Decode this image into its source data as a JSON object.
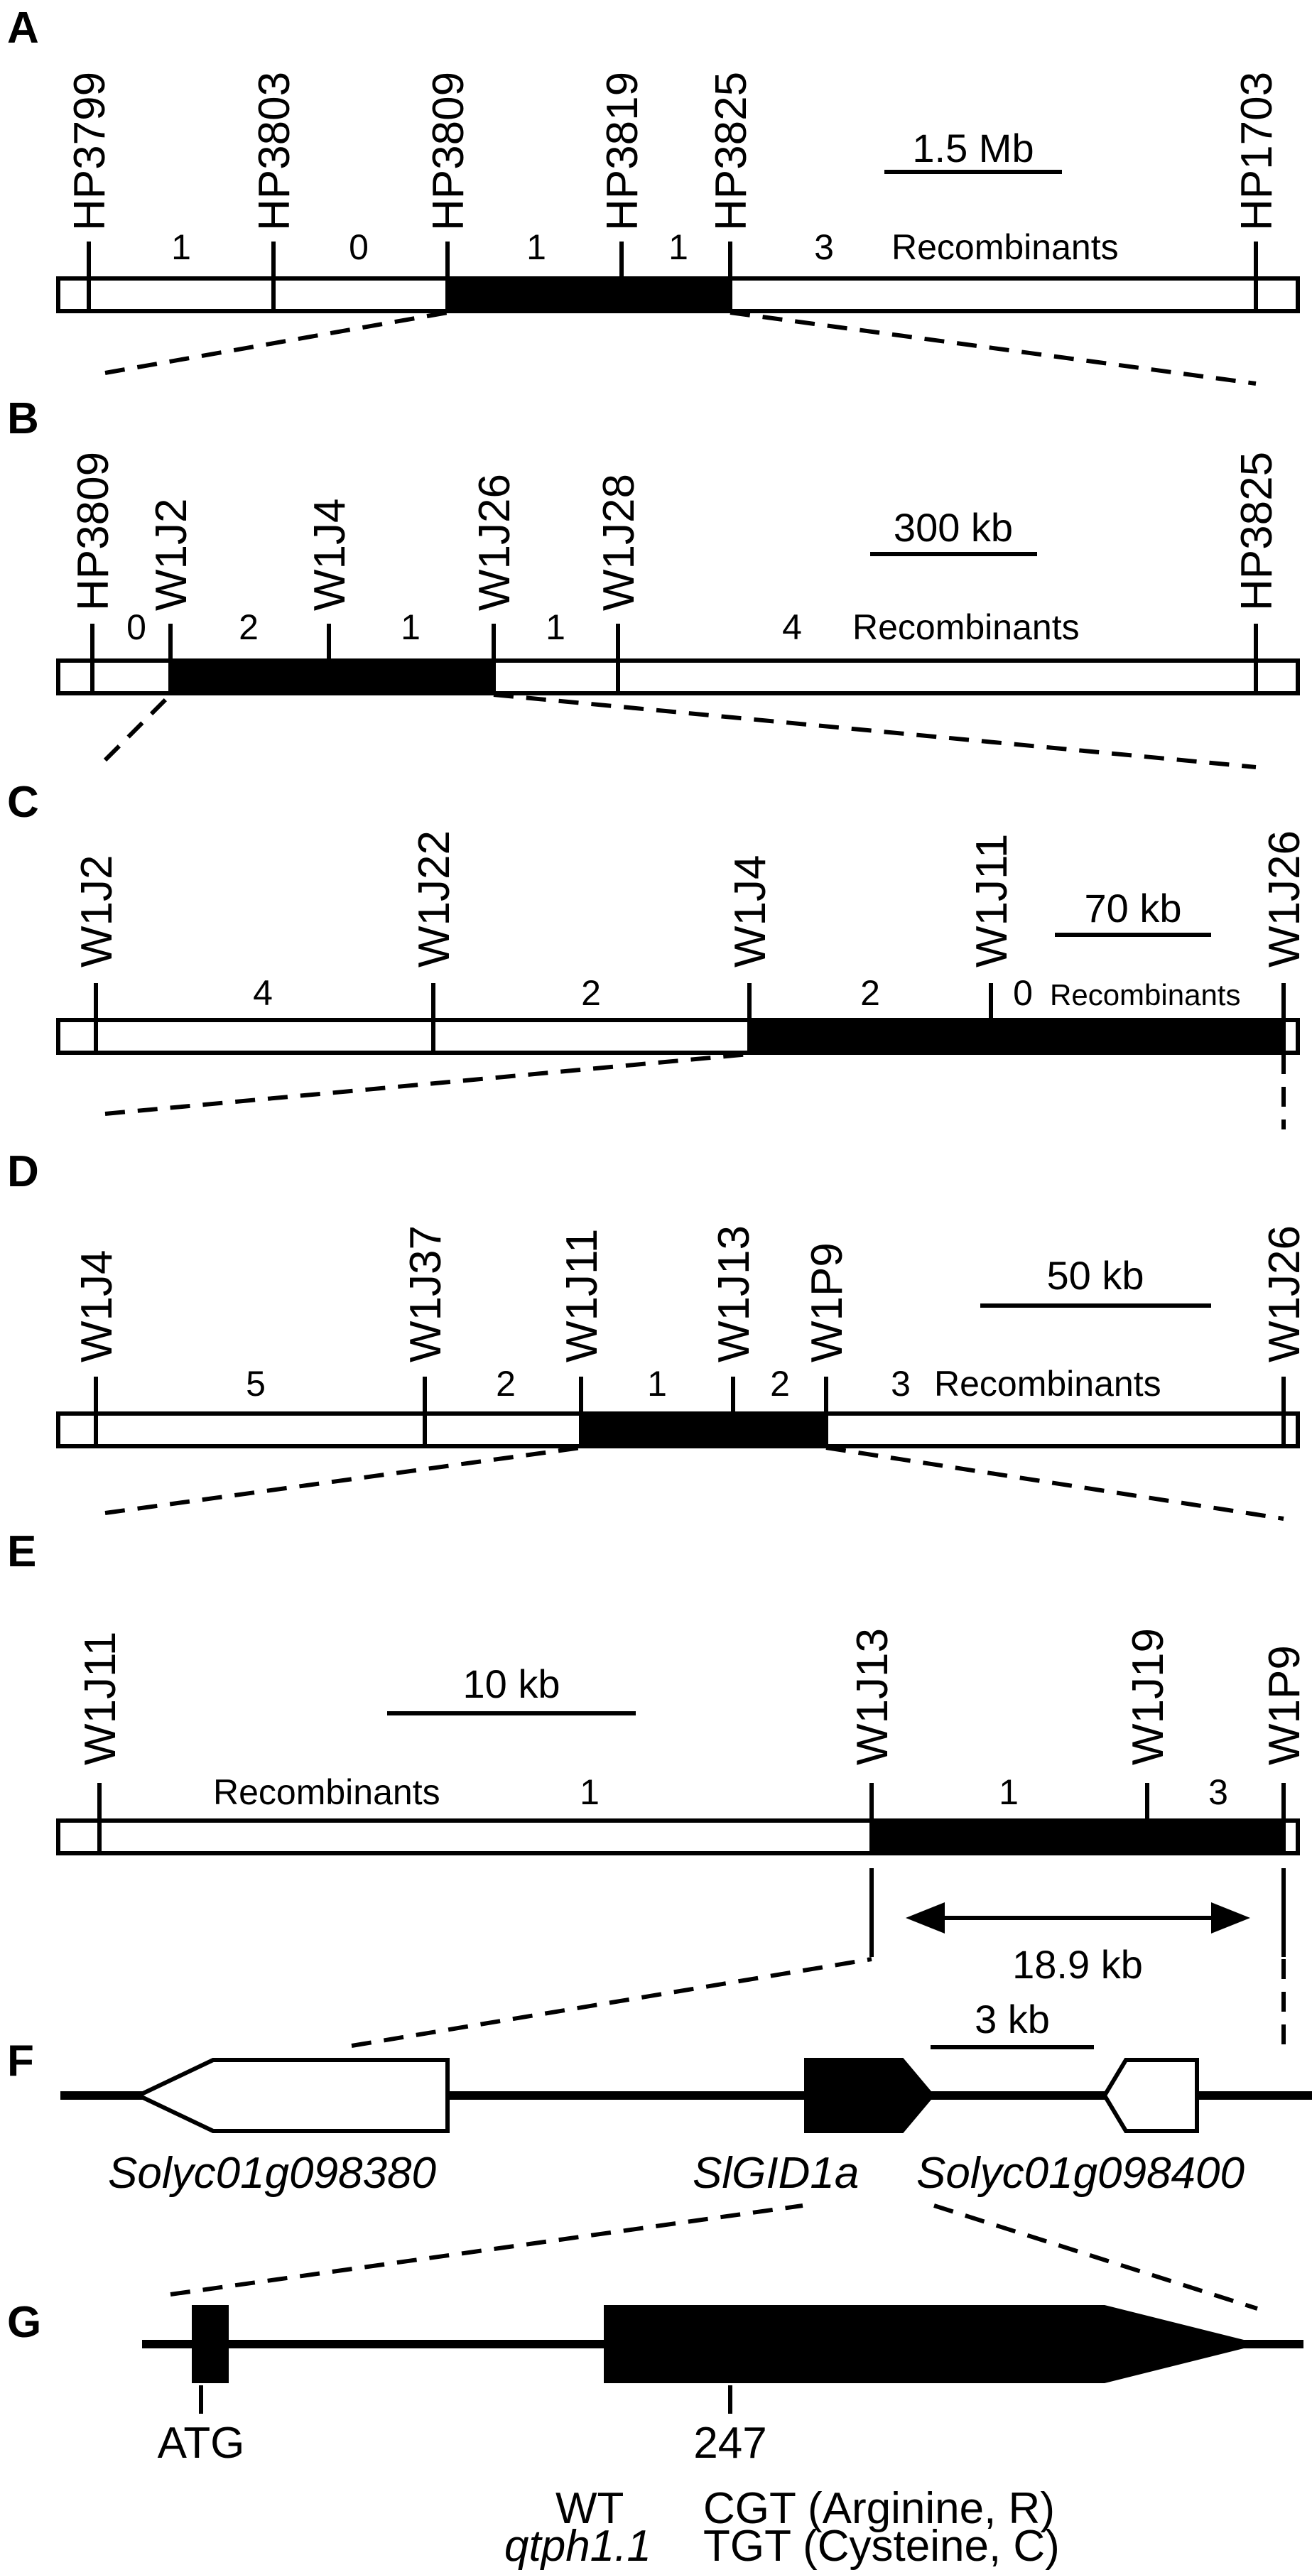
{
  "panels": {
    "A": {
      "letter": "A",
      "markers": [
        "HP3799",
        "HP3803",
        "HP3809",
        "HP3819",
        "HP3825",
        "HP1703"
      ],
      "counts": [
        "1",
        "0",
        "1",
        "1",
        "3"
      ],
      "recombinants": "Recombinants",
      "scale": "1.5 Mb"
    },
    "B": {
      "letter": "B",
      "markers": [
        "HP3809",
        "W1J2",
        "W1J4",
        "W1J26",
        "W1J28",
        "HP3825"
      ],
      "counts": [
        "0",
        "2",
        "1",
        "1",
        "4"
      ],
      "recombinants": "Recombinants",
      "scale": "300 kb"
    },
    "C": {
      "letter": "C",
      "markers": [
        "W1J2",
        "W1J22",
        "W1J4",
        "W1J11",
        "W1J26"
      ],
      "counts": [
        "4",
        "2",
        "2",
        "0"
      ],
      "recombinants": "Recombinants",
      "scale": "70 kb"
    },
    "D": {
      "letter": "D",
      "markers": [
        "W1J4",
        "W1J37",
        "W1J11",
        "W1J13",
        "W1P9",
        "W1J26"
      ],
      "counts": [
        "5",
        "2",
        "1",
        "2",
        "3"
      ],
      "recombinants": "Recombinants",
      "scale": "50 kb"
    },
    "E": {
      "letter": "E",
      "markers": [
        "W1J11",
        "W1J13",
        "W1J19",
        "W1P9"
      ],
      "counts": [
        "1",
        "1",
        "3"
      ],
      "recombinants": "Recombinants",
      "scale": "10 kb",
      "interval": "18.9 kb"
    },
    "F": {
      "letter": "F",
      "genes": [
        "Solyc01g098380",
        "SlGID1a",
        "Solyc01g098400"
      ],
      "scale": "3 kb"
    },
    "G": {
      "letter": "G",
      "atg": "ATG",
      "position": "247",
      "wt_label": "WT",
      "wt_codon": "CGT (Arginine, R)",
      "mut_label": "qtph1.1",
      "mut_codon": "TGT (Cysteine, C)"
    }
  }
}
